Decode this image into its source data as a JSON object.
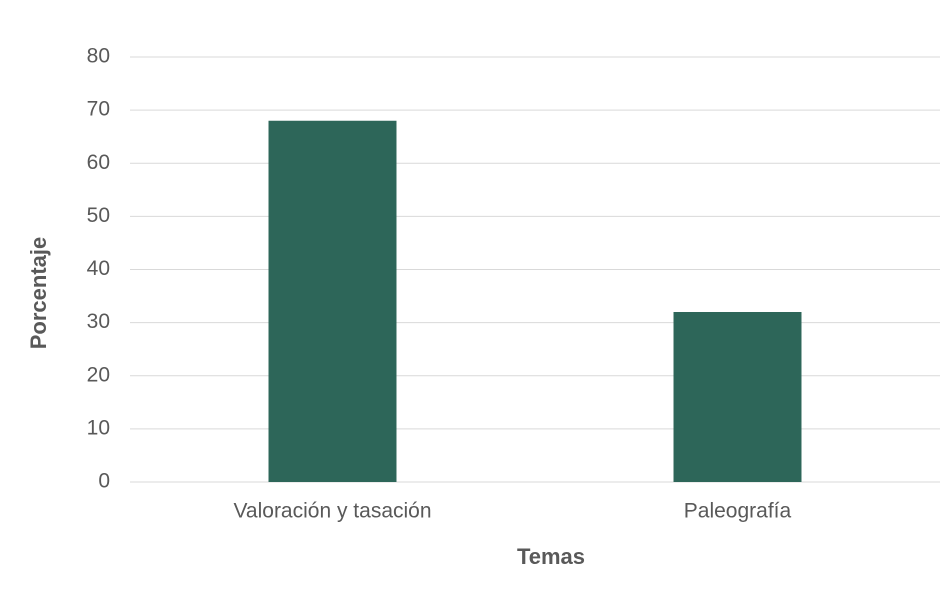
{
  "chart_data": {
    "type": "bar",
    "x_label": "Temas",
    "y_label": "Porcentaje",
    "categories": [
      "Valoración y tasación",
      "Paleografía"
    ],
    "values": [
      68,
      32
    ],
    "color": "#2d6659",
    "ylim": [
      0,
      80
    ],
    "yticks": [
      0,
      10,
      20,
      30,
      40,
      50,
      60,
      70,
      80
    ],
    "grid": true
  }
}
